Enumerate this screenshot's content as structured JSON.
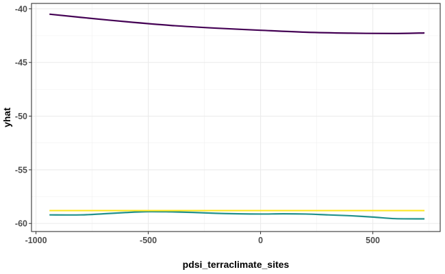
{
  "chart_data": {
    "type": "line",
    "xlabel": "pdsi_terraclimate_sites",
    "ylabel": "yhat",
    "xlim": [
      -1020,
      800
    ],
    "ylim": [
      -60.75,
      -39.5
    ],
    "x_ticks": [
      -1000,
      -500,
      0,
      500
    ],
    "y_ticks": [
      -40,
      -45,
      -50,
      -55,
      -60
    ],
    "grid": true,
    "legend": "none",
    "series": [
      {
        "color": "#440154",
        "x": [
          -940,
          -800,
          -600,
          -400,
          -200,
          0,
          200,
          400,
          600,
          730
        ],
        "y": [
          -40.5,
          -40.8,
          -41.2,
          -41.55,
          -41.8,
          -42.0,
          -42.18,
          -42.27,
          -42.3,
          -42.25
        ]
      },
      {
        "color": "#21908C",
        "x": [
          -940,
          -800,
          -700,
          -600,
          -500,
          -400,
          -300,
          -200,
          -100,
          0,
          100,
          200,
          300,
          400,
          500,
          600,
          730
        ],
        "y": [
          -59.2,
          -59.2,
          -59.1,
          -58.98,
          -58.9,
          -58.92,
          -58.97,
          -59.05,
          -59.1,
          -59.12,
          -59.1,
          -59.12,
          -59.2,
          -59.28,
          -59.4,
          -59.55,
          -59.57
        ]
      },
      {
        "color": "#FDE725",
        "x": [
          -940,
          730
        ],
        "y": [
          -58.8,
          -58.8
        ]
      }
    ]
  }
}
